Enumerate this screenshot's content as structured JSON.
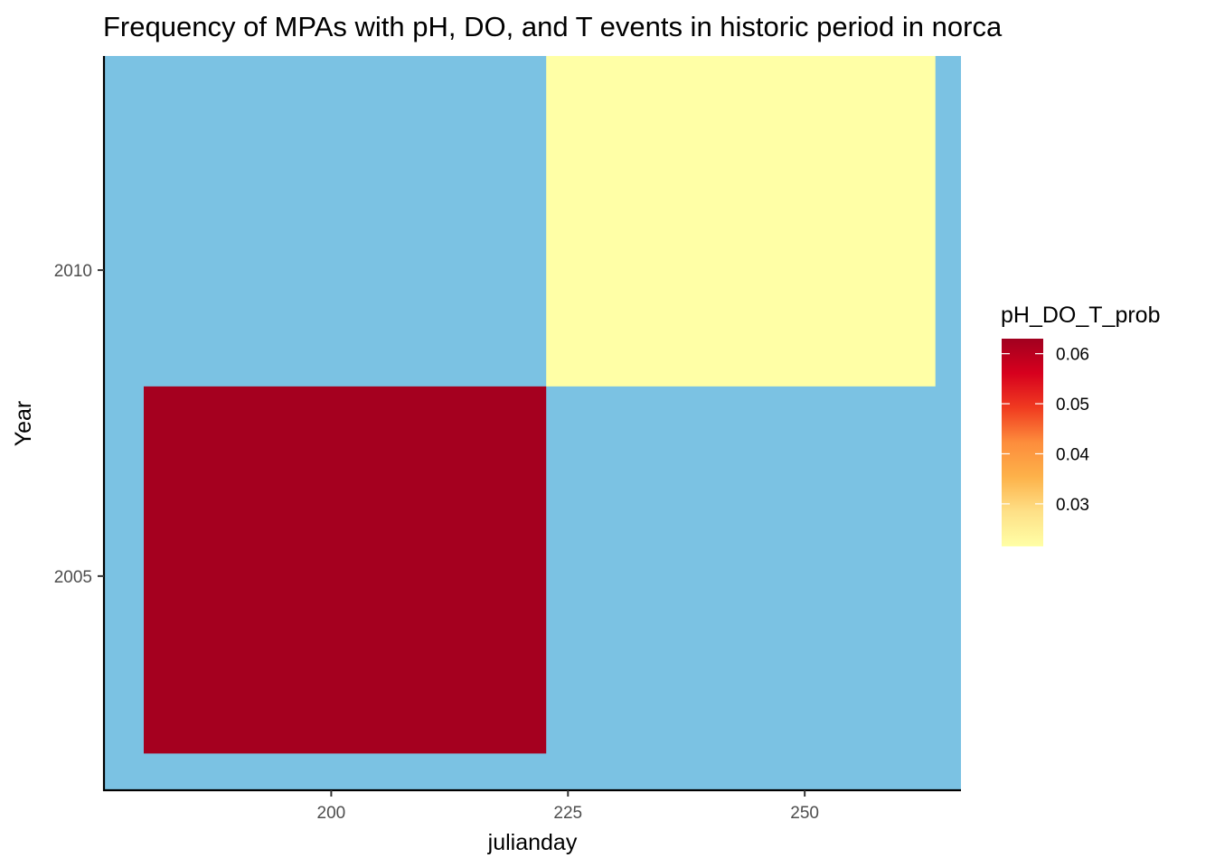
{
  "chart_data": {
    "type": "heatmap",
    "title": "Frequency of MPAs with pH, DO, and T events in historic period in norca",
    "xlabel": "julianday",
    "ylabel": "Year",
    "xlim": [
      176,
      266.5
    ],
    "ylim": [
      2001.5,
      2013.5
    ],
    "xticks": [
      200,
      225,
      250
    ],
    "yticks": [
      2005,
      2010
    ],
    "background_color": "#7BC2E3",
    "grid": false,
    "cells": [
      {
        "x0": 180.2,
        "x1": 222.7,
        "y0": 2002.1,
        "y1": 2008.1,
        "value": 0.0625
      },
      {
        "x0": 222.7,
        "x1": 263.8,
        "y0": 2008.1,
        "y1": 2014.1,
        "value": 0.0215
      }
    ],
    "legend": {
      "title": "pH_DO_T_prob",
      "position": "right",
      "range": [
        0.0215,
        0.063
      ],
      "ticks": [
        0.03,
        0.04,
        0.05,
        0.06
      ],
      "tick_labels": [
        "0.03",
        "0.04",
        "0.05",
        "0.06"
      ],
      "colors": [
        "#FFFFA6",
        "#FEE087",
        "#FDB24A",
        "#FD8D3C",
        "#F03B20",
        "#D7001E",
        "#A1001F"
      ]
    }
  }
}
